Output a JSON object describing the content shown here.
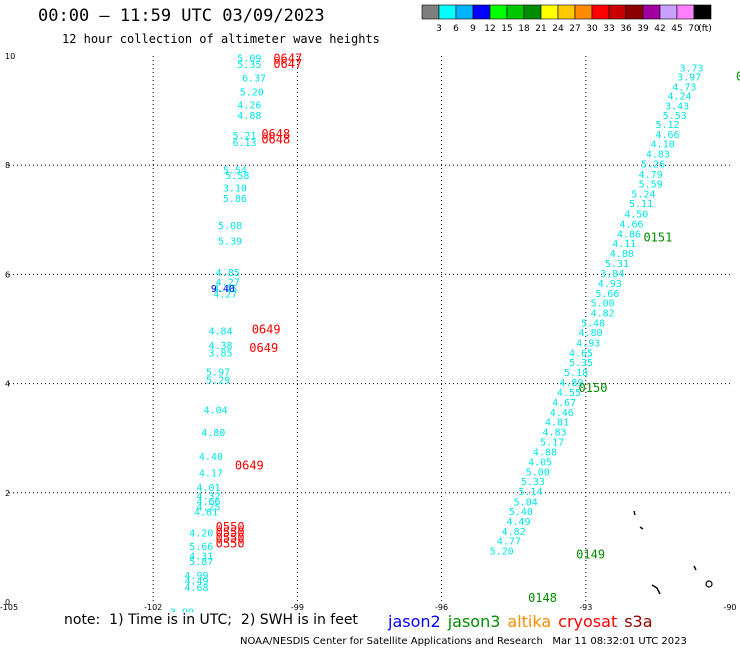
{
  "header": {
    "title": "00:00 – 11:59 UTC 03/09/2023",
    "subtitle": "12 hour collection of altimeter wave heights"
  },
  "colorbar": {
    "labels": [
      "3",
      "6",
      "9",
      "12",
      "15",
      "18",
      "21",
      "24",
      "27",
      "30",
      "33",
      "36",
      "39",
      "42",
      "45",
      "70"
    ],
    "unit": "(ft)",
    "colors": [
      "#7f7f7f",
      "#00ffff",
      "#00b4ff",
      "#0000ff",
      "#00ff00",
      "#00c800",
      "#008c00",
      "#ffff00",
      "#ffc800",
      "#ff8c00",
      "#ff0000",
      "#c80000",
      "#8c0000",
      "#a000a0",
      "#c8a0ff",
      "#ff80ff",
      "#000000"
    ]
  },
  "footer": {
    "note": "note:  1) Time is in UTC;  2) SWH is in feet",
    "credit": "NOAA/NESDIS Center for Satellite Applications and Research   Mar 11 08:32:01 UTC 2023"
  },
  "legend": [
    {
      "name": "jason2",
      "color": "#0000ff"
    },
    {
      "name": "jason3",
      "color": "#008c00"
    },
    {
      "name": "altika",
      "color": "#ff8c00"
    },
    {
      "name": "cryosat",
      "color": "#ff0000"
    },
    {
      "name": "s3a",
      "color": "#8c0000"
    }
  ],
  "chart_data": {
    "type": "scatter",
    "xlim": [
      -105,
      -90
    ],
    "ylim": [
      0,
      10
    ],
    "x_ticks": [
      "-105",
      "-102",
      "-99",
      "-96",
      "-93",
      "-90"
    ],
    "y_ticks": [
      "0",
      "2",
      "4",
      "6",
      "8",
      "10"
    ],
    "grid": true,
    "series": [
      {
        "color": "#00e6e6",
        "points": [
          [
            -100.0,
            9.9,
            "5.09"
          ],
          [
            -100.0,
            9.78,
            "5.35"
          ],
          [
            -99.9,
            9.53,
            "6.37"
          ],
          [
            -99.95,
            9.28,
            "5.20"
          ],
          [
            -100.0,
            9.04,
            "4.26"
          ],
          [
            -100.0,
            8.85,
            "4.88"
          ],
          [
            -100.1,
            8.48,
            "5.21"
          ],
          [
            -100.1,
            8.35,
            "6.13"
          ],
          [
            -100.3,
            7.85,
            "5.54"
          ],
          [
            -100.25,
            7.75,
            "5.58"
          ],
          [
            -100.3,
            7.52,
            "3.10"
          ],
          [
            -100.3,
            7.33,
            "5.86"
          ],
          [
            -100.4,
            6.83,
            "5.08"
          ],
          [
            -100.4,
            6.55,
            "5.39"
          ],
          [
            -100.45,
            5.97,
            "4.85"
          ],
          [
            -100.45,
            5.8,
            "4.27"
          ],
          [
            -100.5,
            5.68,
            "4.45"
          ],
          [
            -100.5,
            5.58,
            "4.27"
          ],
          [
            -100.6,
            4.9,
            "4.84"
          ],
          [
            -100.6,
            4.63,
            "4.38"
          ],
          [
            -100.6,
            4.5,
            "3.85"
          ],
          [
            -100.65,
            4.15,
            "5.97"
          ],
          [
            -100.65,
            4.0,
            "5.29"
          ],
          [
            -100.7,
            3.45,
            "4.04"
          ],
          [
            -100.75,
            3.04,
            "4.80"
          ],
          [
            -100.8,
            2.6,
            "4.40"
          ],
          [
            -100.8,
            2.3,
            "4.17"
          ],
          [
            -100.85,
            2.03,
            "4.01"
          ],
          [
            -100.85,
            1.88,
            "4.32"
          ],
          [
            -100.85,
            1.78,
            "4.66"
          ],
          [
            -100.85,
            1.68,
            "4.25"
          ],
          [
            -100.9,
            1.58,
            "4.61"
          ],
          [
            -101.0,
            1.2,
            "4.20"
          ],
          [
            -101.0,
            0.95,
            "5.66"
          ],
          [
            -101.0,
            0.78,
            "4.31"
          ],
          [
            -101.0,
            0.68,
            "5.87"
          ],
          [
            -101.1,
            0.42,
            "4.99"
          ],
          [
            -101.1,
            0.32,
            "4.49"
          ],
          [
            -101.1,
            0.2,
            "4.68"
          ],
          [
            -101.4,
            -0.25,
            "3.99"
          ],
          [
            -90.8,
            9.72,
            "3.73"
          ],
          [
            -90.85,
            9.55,
            "3.97"
          ],
          [
            -90.95,
            9.37,
            "4.73"
          ],
          [
            -91.05,
            9.2,
            "4.24"
          ],
          [
            -91.1,
            9.02,
            "3.43"
          ],
          [
            -91.15,
            8.85,
            "5.53"
          ],
          [
            -91.3,
            8.68,
            "5.12"
          ],
          [
            -91.3,
            8.5,
            "4.66"
          ],
          [
            -91.4,
            8.32,
            "4.10"
          ],
          [
            -91.5,
            8.14,
            "4.83"
          ],
          [
            -91.6,
            7.96,
            "5.26"
          ],
          [
            -91.65,
            7.77,
            "4.79"
          ],
          [
            -91.65,
            7.59,
            "5.59"
          ],
          [
            -91.8,
            7.41,
            "5.24"
          ],
          [
            -91.85,
            7.23,
            "5.11"
          ],
          [
            -91.95,
            7.04,
            "4.50"
          ],
          [
            -92.05,
            6.86,
            "4.66"
          ],
          [
            -92.1,
            6.68,
            "4.86"
          ],
          [
            -92.2,
            6.5,
            "4.11"
          ],
          [
            -92.25,
            6.32,
            "4.88"
          ],
          [
            -92.35,
            6.14,
            "5.31"
          ],
          [
            -92.45,
            5.95,
            "3.84"
          ],
          [
            -92.5,
            5.77,
            "4.93"
          ],
          [
            -92.55,
            5.59,
            "5.66"
          ],
          [
            -92.65,
            5.41,
            "5.00"
          ],
          [
            -92.65,
            5.23,
            "4.82"
          ],
          [
            -92.85,
            5.05,
            "5.48"
          ],
          [
            -92.9,
            4.87,
            "4.80"
          ],
          [
            -92.95,
            4.68,
            "4.93"
          ],
          [
            -93.1,
            4.5,
            "4.65"
          ],
          [
            -93.1,
            4.32,
            "5.35"
          ],
          [
            -93.2,
            4.14,
            "5.18"
          ],
          [
            -93.3,
            3.96,
            "4.89"
          ],
          [
            -93.35,
            3.77,
            "4.55"
          ],
          [
            -93.45,
            3.59,
            "4.67"
          ],
          [
            -93.5,
            3.41,
            "4.46"
          ],
          [
            -93.6,
            3.23,
            "4.81"
          ],
          [
            -93.65,
            3.05,
            "4.83"
          ],
          [
            -93.7,
            2.87,
            "5.17"
          ],
          [
            -93.85,
            2.68,
            "4.88"
          ],
          [
            -93.95,
            2.5,
            "4.05"
          ],
          [
            -94.0,
            2.32,
            "5.00"
          ],
          [
            -94.1,
            2.14,
            "5.33"
          ],
          [
            -94.15,
            1.96,
            "5.14"
          ],
          [
            -94.25,
            1.77,
            "5.04"
          ],
          [
            -94.35,
            1.59,
            "5.40"
          ],
          [
            -94.4,
            1.41,
            "4.49"
          ],
          [
            -94.5,
            1.23,
            "4.82"
          ],
          [
            -94.6,
            1.05,
            "4.77"
          ],
          [
            -94.75,
            0.87,
            "5.20"
          ]
        ]
      },
      {
        "color": "#0000ff",
        "points": [
          [
            -100.55,
            5.68,
            "9.40"
          ]
        ]
      },
      {
        "color": "#ff0000",
        "points": [
          [
            -99.2,
            9.88,
            "0647"
          ],
          [
            -99.2,
            9.78,
            "0647"
          ],
          [
            -99.45,
            8.5,
            "0648"
          ],
          [
            -99.45,
            8.4,
            "0648"
          ],
          [
            -99.65,
            4.92,
            "0649"
          ],
          [
            -99.7,
            4.58,
            "0649"
          ],
          [
            -100.0,
            2.43,
            "0649"
          ],
          [
            -100.4,
            1.3,
            "0550"
          ],
          [
            -100.4,
            1.2,
            "0550"
          ],
          [
            -100.4,
            1.1,
            "0550"
          ],
          [
            -100.4,
            1.0,
            "0550"
          ]
        ]
      },
      {
        "color": "#008c00",
        "points": [
          [
            -89.8,
            9.55,
            "0"
          ],
          [
            -91.5,
            6.6,
            "0151"
          ],
          [
            -92.85,
            3.85,
            "0150"
          ],
          [
            -92.9,
            0.8,
            "0149"
          ],
          [
            -93.9,
            0.0,
            "0148"
          ]
        ]
      }
    ]
  }
}
